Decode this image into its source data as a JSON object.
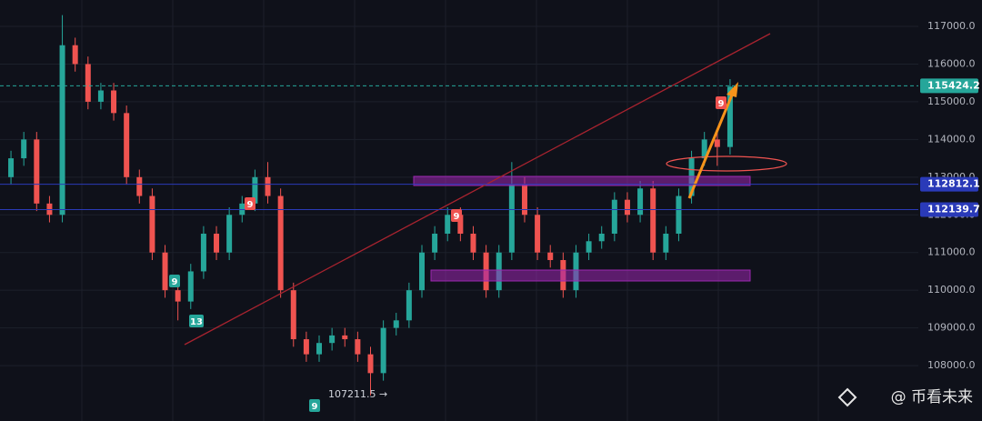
{
  "chart_data": {
    "type": "candlestick",
    "ylim": [
      106530,
      117700
    ],
    "yticks": [
      {
        "value": 108000,
        "label": "108000.0"
      },
      {
        "value": 109000,
        "label": "109000.0"
      },
      {
        "value": 110000,
        "label": "110000.0"
      },
      {
        "value": 111000,
        "label": "111000.0"
      },
      {
        "value": 112000,
        "label": "112000.0"
      },
      {
        "value": 113000,
        "label": "113000.0"
      },
      {
        "value": 114000,
        "label": "114000.0"
      },
      {
        "value": 115000,
        "label": "115000.0"
      },
      {
        "value": 116000,
        "label": "116000.0"
      },
      {
        "value": 117000,
        "label": "117000.0"
      }
    ],
    "open": [
      113000,
      113500,
      114000,
      112300,
      112000,
      116500,
      116000,
      115000,
      115300,
      114700,
      113000,
      112500,
      111000,
      110000,
      109700,
      110500,
      111500,
      111000,
      112000,
      112300,
      113000,
      112500,
      110000,
      108700,
      108300,
      108600,
      108800,
      108700,
      108300,
      107800,
      109000,
      109200,
      110000,
      111000,
      111500,
      112000,
      111500,
      111000,
      110000,
      111000,
      112800,
      112000,
      111000,
      110800,
      110000,
      111000,
      111300,
      111500,
      112400,
      112000,
      112700,
      111000,
      111500,
      112500,
      113500,
      114000,
      113800
    ],
    "high": [
      113700,
      114200,
      114200,
      112500,
      117300,
      116700,
      116200,
      115500,
      115500,
      114900,
      113200,
      112700,
      111200,
      110200,
      110700,
      111700,
      111700,
      112200,
      112500,
      113200,
      113400,
      112700,
      110200,
      108900,
      108800,
      109000,
      109000,
      108900,
      108500,
      109200,
      109400,
      110200,
      111200,
      111700,
      112200,
      112200,
      111700,
      111200,
      111200,
      113400,
      113000,
      112200,
      111200,
      111000,
      111200,
      111500,
      111700,
      112600,
      112600,
      112900,
      112900,
      111700,
      112700,
      113700,
      114200,
      114200,
      115600
    ],
    "low": [
      112800,
      113300,
      112100,
      111800,
      111800,
      115800,
      114800,
      114800,
      114500,
      112800,
      112300,
      110800,
      109800,
      109200,
      109500,
      110300,
      110800,
      110800,
      111800,
      112100,
      112300,
      109800,
      108500,
      108100,
      108100,
      108400,
      108500,
      108100,
      107211.5,
      107600,
      108800,
      109000,
      109800,
      110800,
      111300,
      111300,
      110800,
      109800,
      109800,
      110800,
      111800,
      110800,
      110600,
      109800,
      109800,
      110800,
      111100,
      111300,
      111800,
      111800,
      110800,
      110800,
      111300,
      112300,
      113300,
      113300,
      113600
    ],
    "close": [
      113500,
      114000,
      112300,
      112000,
      116500,
      116000,
      115000,
      115300,
      114700,
      113000,
      112500,
      111000,
      110000,
      109700,
      110500,
      111500,
      111000,
      112000,
      112300,
      113000,
      112500,
      110000,
      108700,
      108300,
      108600,
      108800,
      108700,
      108300,
      107800,
      109000,
      109200,
      110000,
      111000,
      111500,
      112000,
      111500,
      111000,
      110000,
      111000,
      112800,
      112000,
      111000,
      110800,
      110000,
      111000,
      111300,
      111500,
      112400,
      112000,
      112700,
      111000,
      111500,
      112500,
      113500,
      114000,
      113800,
      115400
    ],
    "up_color": "#26a69a",
    "down_color": "#ef5350",
    "price_lines": [
      {
        "value": 115424.2,
        "label": "115424.2",
        "color": "#26a69a"
      },
      {
        "value": 112812.1,
        "label": "112812.1",
        "color": "#2a3ab8"
      },
      {
        "value": 112139.7,
        "label": "112139.7",
        "color": "#2a3ab8"
      }
    ],
    "low_annotation": "107211.5 →",
    "signals": [
      "9",
      "13",
      "9",
      "9",
      "9",
      "9"
    ],
    "watermark": "@ 币看未来"
  }
}
